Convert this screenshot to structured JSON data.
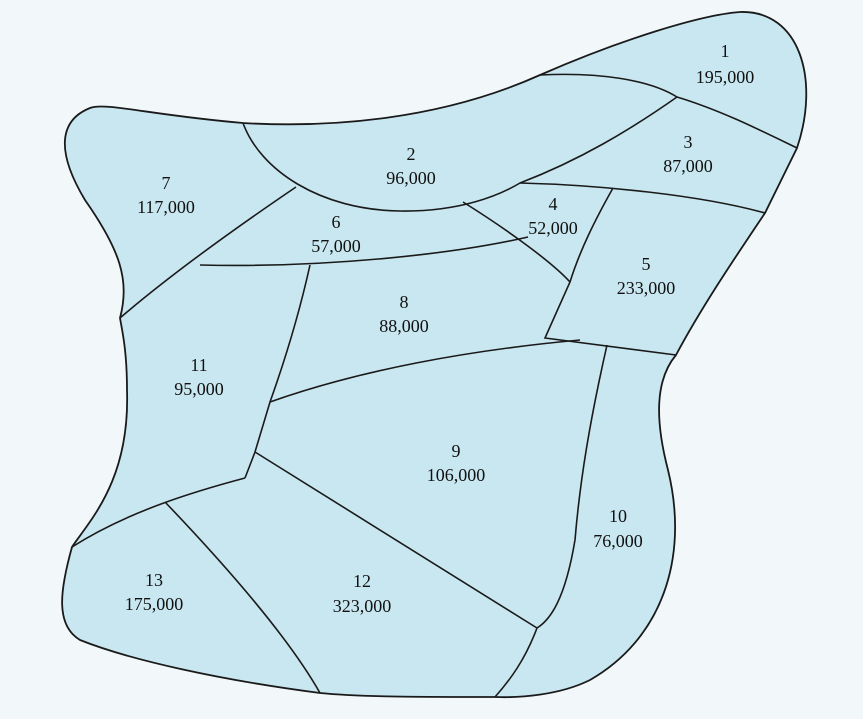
{
  "colors": {
    "background": "#f2f8fa",
    "region_fill": "#c9e7f0",
    "border": "#1a1a1a"
  },
  "regions": [
    {
      "id": "1",
      "value": "195,000"
    },
    {
      "id": "2",
      "value": "96,000"
    },
    {
      "id": "3",
      "value": "87,000"
    },
    {
      "id": "4",
      "value": "52,000"
    },
    {
      "id": "5",
      "value": "233,000"
    },
    {
      "id": "6",
      "value": "57,000"
    },
    {
      "id": "7",
      "value": "117,000"
    },
    {
      "id": "8",
      "value": "88,000"
    },
    {
      "id": "9",
      "value": "106,000"
    },
    {
      "id": "10",
      "value": "76,000"
    },
    {
      "id": "11",
      "value": "95,000"
    },
    {
      "id": "12",
      "value": "323,000"
    },
    {
      "id": "13",
      "value": "175,000"
    }
  ]
}
